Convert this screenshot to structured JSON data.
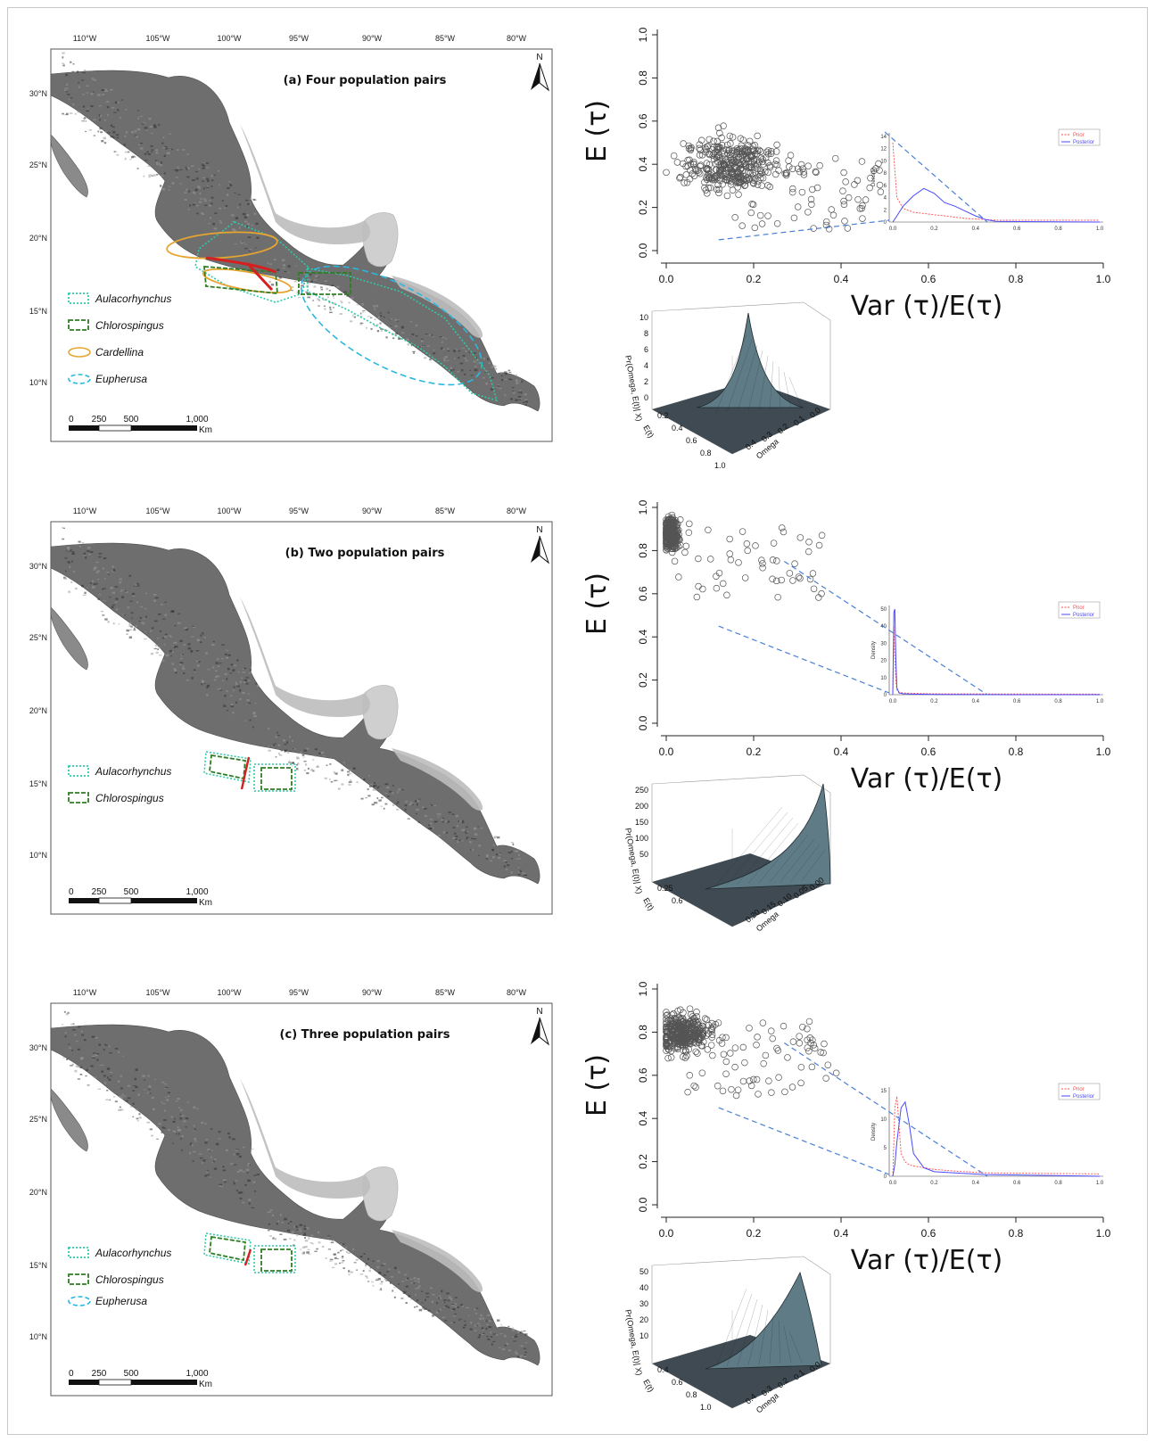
{
  "maps": [
    {
      "id": "a",
      "title": "(a) Four population pairs",
      "north": "N",
      "lon_labels": [
        "110°W",
        "105°W",
        "100°W",
        "95°W",
        "90°W",
        "85°W",
        "80°W"
      ],
      "lat_labels": [
        "30°N",
        "25°N",
        "20°N",
        "15°N",
        "10°N"
      ],
      "legend": [
        "Aulacorhynchus",
        "Chlorospingus",
        "Cardellina",
        "Eupherusa"
      ],
      "scale_labels": [
        "0",
        "250",
        "500",
        "1,000"
      ],
      "scale_unit": "Km"
    },
    {
      "id": "b",
      "title": "(b) Two population pairs",
      "north": "N",
      "lon_labels": [
        "110°W",
        "105°W",
        "100°W",
        "95°W",
        "90°W",
        "85°W",
        "80°W"
      ],
      "lat_labels": [
        "30°N",
        "25°N",
        "20°N",
        "15°N",
        "10°N"
      ],
      "legend": [
        "Aulacorhynchus",
        "Chlorospingus"
      ],
      "scale_labels": [
        "0",
        "250",
        "500",
        "1,000"
      ],
      "scale_unit": "Km"
    },
    {
      "id": "c",
      "title": "(c) Three population pairs",
      "north": "N",
      "lon_labels": [
        "110°W",
        "105°W",
        "100°W",
        "95°W",
        "90°W",
        "85°W",
        "80°W"
      ],
      "lat_labels": [
        "30°N",
        "25°N",
        "20°N",
        "15°N",
        "10°N"
      ],
      "legend": [
        "Aulacorhynchus",
        "Chlorospingus",
        "Eupherusa"
      ],
      "scale_labels": [
        "0",
        "250",
        "500",
        "1,000"
      ],
      "scale_unit": "Km"
    }
  ],
  "colors": {
    "aulacorhynchus": "#2ec9a7",
    "chlorospingus": "#2f7d23",
    "cardellina": "#e6a530",
    "eupherusa": "#2bb8e0",
    "prior": "#ff4a4a",
    "posterior": "#4a4aff",
    "barrier": "#d42020"
  },
  "plots": [
    {
      "xlabel": "Var (τ)/E(τ)",
      "ylabel": "E (τ)",
      "x_ticks": [
        "0.0",
        "0.2",
        "0.4",
        "0.6",
        "0.8",
        "1.0"
      ],
      "y_ticks": [
        "0.0",
        "0.2",
        "0.4",
        "0.6",
        "0.8",
        "1.0"
      ],
      "inset": {
        "ylabel": "Density",
        "x_ticks": [
          "0.0",
          "0.2",
          "0.4",
          "0.6",
          "0.8",
          "1.0"
        ],
        "y_ticks": [
          "0",
          "2",
          "4",
          "6",
          "8",
          "10",
          "12",
          "14"
        ],
        "legend": [
          "Prior",
          "Posterior"
        ]
      },
      "surface": {
        "zlabel": "Pr(Omega, E(t)| X)",
        "ylabel": "E(t)",
        "xlabel": "Omega",
        "z_ticks": [
          "10",
          "8",
          "6",
          "4",
          "2",
          "0"
        ],
        "y_ticks": [
          "0.2",
          "0.4",
          "0.6",
          "0.8",
          "1.0"
        ],
        "x_ticks": [
          "0.0",
          "0.1",
          "0.2",
          "0.3",
          "0.4"
        ]
      }
    },
    {
      "xlabel": "Var (τ)/E(τ)",
      "ylabel": "E (τ)",
      "x_ticks": [
        "0.0",
        "0.2",
        "0.4",
        "0.6",
        "0.8",
        "1.0"
      ],
      "y_ticks": [
        "0.0",
        "0.2",
        "0.4",
        "0.6",
        "0.8",
        "1.0"
      ],
      "inset": {
        "ylabel": "Density",
        "x_ticks": [
          "0.0",
          "0.2",
          "0.4",
          "0.6",
          "0.8",
          "1.0"
        ],
        "y_ticks": [
          "0",
          "10",
          "20",
          "30",
          "40",
          "50"
        ],
        "legend": [
          "Prior",
          "Posterior"
        ]
      },
      "surface": {
        "zlabel": "Pr(Omega, E(t)| X)",
        "ylabel": "E(t)",
        "xlabel": "Omega",
        "z_ticks": [
          "250",
          "200",
          "150",
          "100",
          "50"
        ],
        "y_ticks": [
          "0.25",
          "0.6"
        ],
        "x_ticks": [
          "0.00",
          "0.05",
          "0.10",
          "0.15",
          "0.20"
        ]
      }
    },
    {
      "xlabel": "Var (τ)/E(τ)",
      "ylabel": "E (τ)",
      "x_ticks": [
        "0.0",
        "0.2",
        "0.4",
        "0.6",
        "0.8",
        "1.0"
      ],
      "y_ticks": [
        "0.0",
        "0.2",
        "0.4",
        "0.6",
        "0.8",
        "1.0"
      ],
      "inset": {
        "ylabel": "Density",
        "x_ticks": [
          "0.0",
          "0.2",
          "0.4",
          "0.6",
          "0.8",
          "1.0"
        ],
        "y_ticks": [
          "0",
          "5",
          "10",
          "15"
        ],
        "legend": [
          "Prior",
          "Posterior"
        ]
      },
      "surface": {
        "zlabel": "Pr(Omega, E(t)| X)",
        "ylabel": "E(t)",
        "xlabel": "Omega",
        "z_ticks": [
          "50",
          "40",
          "30",
          "20",
          "10"
        ],
        "y_ticks": [
          "0.4",
          "0.6",
          "0.8",
          "1.0"
        ],
        "x_ticks": [
          "0.0",
          "0.1",
          "0.2",
          "0.3",
          "0.4"
        ]
      }
    }
  ],
  "chart_data": [
    {
      "type": "scatter",
      "xlabel": "Var (τ)/E(τ)",
      "ylabel": "E (τ)",
      "xlim": [
        0,
        1
      ],
      "ylim": [
        0,
        1
      ],
      "cluster": {
        "x_center": 0.15,
        "y_center": 0.4,
        "x_spread": 0.18,
        "y_spread": 0.2,
        "n_points": 420
      },
      "inset_density": {
        "x": [
          0.0,
          0.02,
          0.05,
          0.1,
          0.15,
          0.2,
          0.25,
          0.3,
          0.35,
          0.4,
          0.45,
          0.5,
          1.0
        ],
        "prior": [
          13,
          4,
          2.2,
          1.6,
          1.4,
          1.2,
          1.0,
          0.8,
          0.6,
          0.5,
          0.4,
          0.3,
          0.3
        ],
        "posterior": [
          0,
          1.0,
          2.6,
          4.3,
          5.5,
          4.7,
          3.2,
          2.6,
          1.8,
          1.0,
          0.4,
          0.1,
          0
        ]
      }
    },
    {
      "type": "scatter",
      "xlabel": "Var (τ)/E(τ)",
      "ylabel": "E (τ)",
      "xlim": [
        0,
        1
      ],
      "ylim": [
        0,
        1
      ],
      "cluster": {
        "x_center": 0.01,
        "y_center": 0.88,
        "x_spread": 0.03,
        "y_spread": 0.12,
        "n_points": 380
      },
      "inset_density": {
        "x": [
          0.0,
          0.005,
          0.01,
          0.015,
          0.02,
          0.03,
          0.05,
          0.1,
          0.2,
          0.6,
          1.0
        ],
        "prior": [
          0,
          40,
          20,
          8,
          3,
          1.5,
          1,
          0.8,
          0.5,
          0.4,
          0.3
        ],
        "posterior": [
          0,
          48,
          50,
          20,
          4,
          1,
          0.5,
          0.3,
          0.1,
          0,
          0
        ]
      }
    },
    {
      "type": "scatter",
      "xlabel": "Var (τ)/E(τ)",
      "ylabel": "E (τ)",
      "xlim": [
        0,
        1
      ],
      "ylim": [
        0,
        1
      ],
      "cluster": {
        "x_center": 0.04,
        "y_center": 0.8,
        "x_spread": 0.09,
        "y_spread": 0.14,
        "n_points": 430
      },
      "inset_density": {
        "x": [
          0.0,
          0.01,
          0.02,
          0.04,
          0.06,
          0.08,
          0.1,
          0.15,
          0.2,
          0.3,
          0.45,
          1.0
        ],
        "prior": [
          0,
          12,
          14,
          4,
          2.5,
          2,
          1.8,
          1.5,
          1.2,
          0.9,
          0.6,
          0.4
        ],
        "posterior": [
          0,
          2,
          6,
          12,
          13,
          9,
          4,
          1.5,
          0.8,
          0.6,
          0.3,
          0
        ]
      }
    }
  ]
}
